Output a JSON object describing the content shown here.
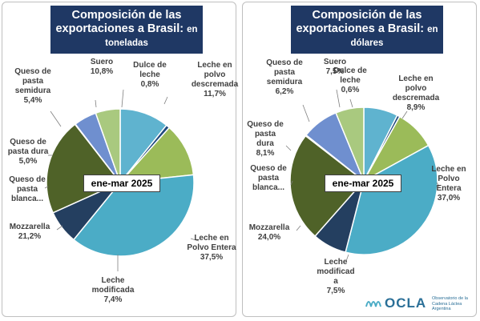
{
  "period_label": "ene-mar 2025",
  "colors": {
    "Suero": "#5fb3cf",
    "Dulce de leche": "#1f497d",
    "Leche en polvo descremada": "#9bbb59",
    "Leche en Polvo Entera": "#4bacc6",
    "Leche modificada": "#243f60",
    "Mozzarella": "#4f6228",
    "Queso de pasta blanca...": "#77933c",
    "Queso de pasta dura": "#6f8fcf",
    "Queso de pasta semidura": "#a9c97f"
  },
  "chart_data": [
    {
      "type": "pie",
      "title": "Composición de las exportaciones a Brasil:",
      "subtitle": "en toneladas",
      "slices": [
        {
          "label": "Suero",
          "value": 10.8,
          "text": "10,8%"
        },
        {
          "label": "Dulce de leche",
          "value": 0.8,
          "text": "0,8%"
        },
        {
          "label": "Leche en polvo descremada",
          "value": 11.7,
          "text": "11,7%"
        },
        {
          "label": "Leche en Polvo Entera",
          "value": 37.5,
          "text": "37,5%"
        },
        {
          "label": "Leche modificada",
          "value": 7.4,
          "text": "7,4%"
        },
        {
          "label": "Mozzarella",
          "value": 21.2,
          "text": "21,2%"
        },
        {
          "label": "Queso de pasta blanca...",
          "value": 0.1,
          "text": ""
        },
        {
          "label": "Queso de pasta dura",
          "value": 5.0,
          "text": "5,0%"
        },
        {
          "label": "Queso de pasta semidura",
          "value": 5.4,
          "text": "5,4%"
        }
      ]
    },
    {
      "type": "pie",
      "title": "Composición de las exportaciones a Brasil:",
      "subtitle": "en dólares",
      "slices": [
        {
          "label": "Suero",
          "value": 7.5,
          "text": "7,5%"
        },
        {
          "label": "Dulce de leche",
          "value": 0.6,
          "text": "0,6%"
        },
        {
          "label": "Leche en polvo descremada",
          "value": 8.9,
          "text": "8,9%"
        },
        {
          "label": "Leche en Polvo Entera",
          "value": 37.0,
          "text": "37,0%"
        },
        {
          "label": "Leche modificada",
          "value": 7.5,
          "text": "7,5%"
        },
        {
          "label": "Mozzarella",
          "value": 24.0,
          "text": "24,0%"
        },
        {
          "label": "Queso de pasta blanca...",
          "value": 0.2,
          "text": ""
        },
        {
          "label": "Queso de pasta dura",
          "value": 8.1,
          "text": "8,1%"
        },
        {
          "label": "Queso de pasta semidura",
          "value": 6.2,
          "text": "6,2%"
        }
      ]
    }
  ],
  "logo": {
    "name": "OCLA",
    "tagline": "Observatorio de la Cadena Láctea Argentina"
  }
}
